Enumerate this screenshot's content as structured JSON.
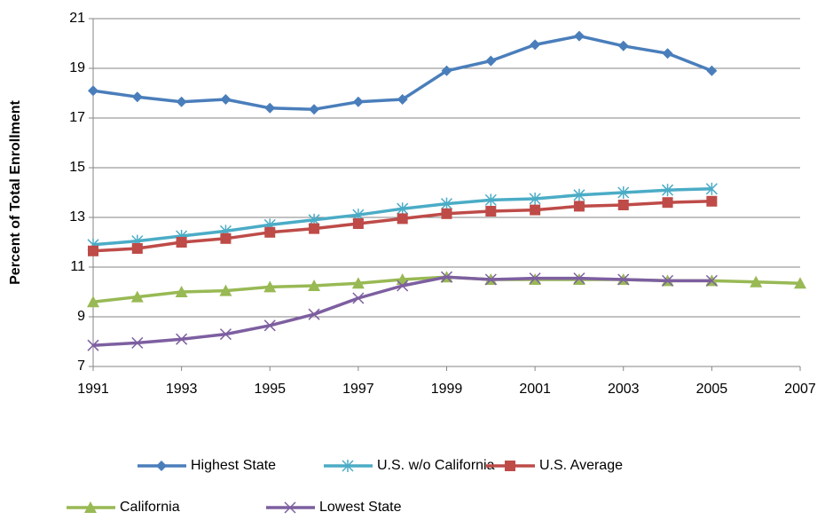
{
  "chart_data": {
    "type": "line",
    "y_label": "Percent of Total Enrollment",
    "x": [
      1991,
      1992,
      1993,
      1994,
      1995,
      1996,
      1997,
      1998,
      1999,
      2000,
      2001,
      2002,
      2003,
      2004,
      2005,
      2006,
      2007
    ],
    "xlim": [
      1991,
      2007
    ],
    "xticks": [
      1991,
      1993,
      1995,
      1997,
      1999,
      2001,
      2003,
      2005,
      2007
    ],
    "ylim": [
      7,
      21
    ],
    "yticks": [
      7,
      9,
      11,
      13,
      15,
      17,
      19,
      21
    ],
    "grid": true,
    "series": [
      {
        "name": "Highest State",
        "color": "#4a7ebb",
        "marker": "diamond",
        "values": [
          18.1,
          17.85,
          17.65,
          17.75,
          17.4,
          17.35,
          17.65,
          17.75,
          18.9,
          19.3,
          19.95,
          20.3,
          19.9,
          19.6,
          18.9,
          null,
          null
        ]
      },
      {
        "name": "U.S. w/o California",
        "color": "#4bacc6",
        "marker": "asterisk",
        "values": [
          11.9,
          12.05,
          12.25,
          12.45,
          12.7,
          12.9,
          13.1,
          13.35,
          13.55,
          13.7,
          13.75,
          13.9,
          14.0,
          14.1,
          14.15,
          null,
          null
        ]
      },
      {
        "name": "U.S. Average",
        "color": "#be4b48",
        "marker": "square",
        "values": [
          11.65,
          11.75,
          12.0,
          12.15,
          12.4,
          12.55,
          12.75,
          12.95,
          13.15,
          13.25,
          13.3,
          13.45,
          13.5,
          13.6,
          13.65,
          null,
          null
        ]
      },
      {
        "name": "California",
        "color": "#98b954",
        "marker": "triangle",
        "values": [
          9.6,
          9.8,
          10.0,
          10.05,
          10.2,
          10.25,
          10.35,
          10.5,
          10.6,
          10.5,
          10.5,
          10.5,
          10.5,
          10.45,
          10.45,
          10.4,
          10.35
        ]
      },
      {
        "name": "Lowest State",
        "color": "#7d5fa0",
        "marker": "x",
        "values": [
          7.85,
          7.95,
          8.1,
          8.3,
          8.65,
          9.1,
          9.75,
          10.25,
          10.6,
          10.5,
          10.55,
          10.55,
          10.5,
          10.45,
          10.45,
          null,
          null
        ]
      }
    ]
  }
}
